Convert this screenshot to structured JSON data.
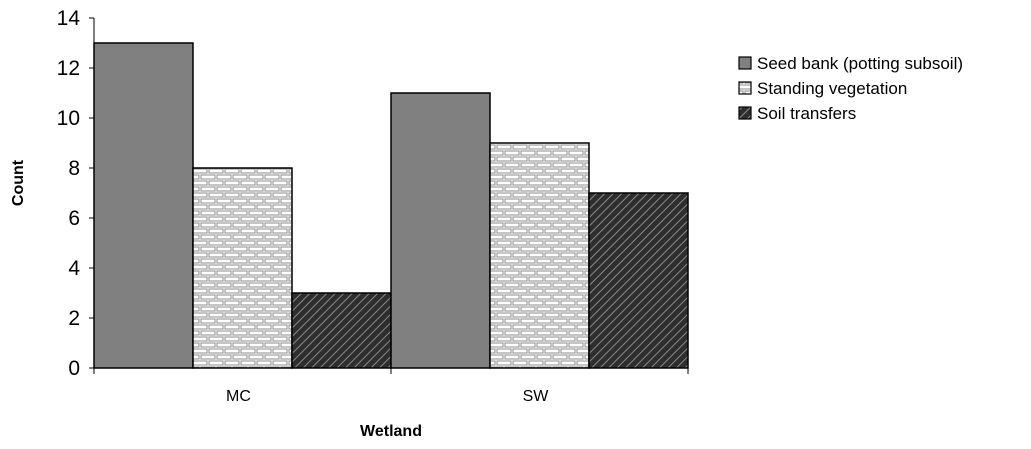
{
  "chart_data": {
    "type": "bar",
    "title": "",
    "xlabel": "Wetland",
    "ylabel": "Count",
    "categories": [
      "MC",
      "SW"
    ],
    "ylim": [
      0,
      14
    ],
    "yticks": [
      0,
      2,
      4,
      6,
      8,
      10,
      12,
      14
    ],
    "grid": false,
    "legend_position": "right",
    "series": [
      {
        "name": "Seed bank (potting subsoil)",
        "values": [
          13,
          11
        ],
        "pattern": "solid",
        "color": "#808080"
      },
      {
        "name": "Standing vegetation",
        "values": [
          8,
          9
        ],
        "pattern": "brick",
        "color": "#ffffff"
      },
      {
        "name": "Soil transfers",
        "values": [
          3,
          7
        ],
        "pattern": "diagonal-dark",
        "color": "#3a3a3a"
      }
    ]
  }
}
